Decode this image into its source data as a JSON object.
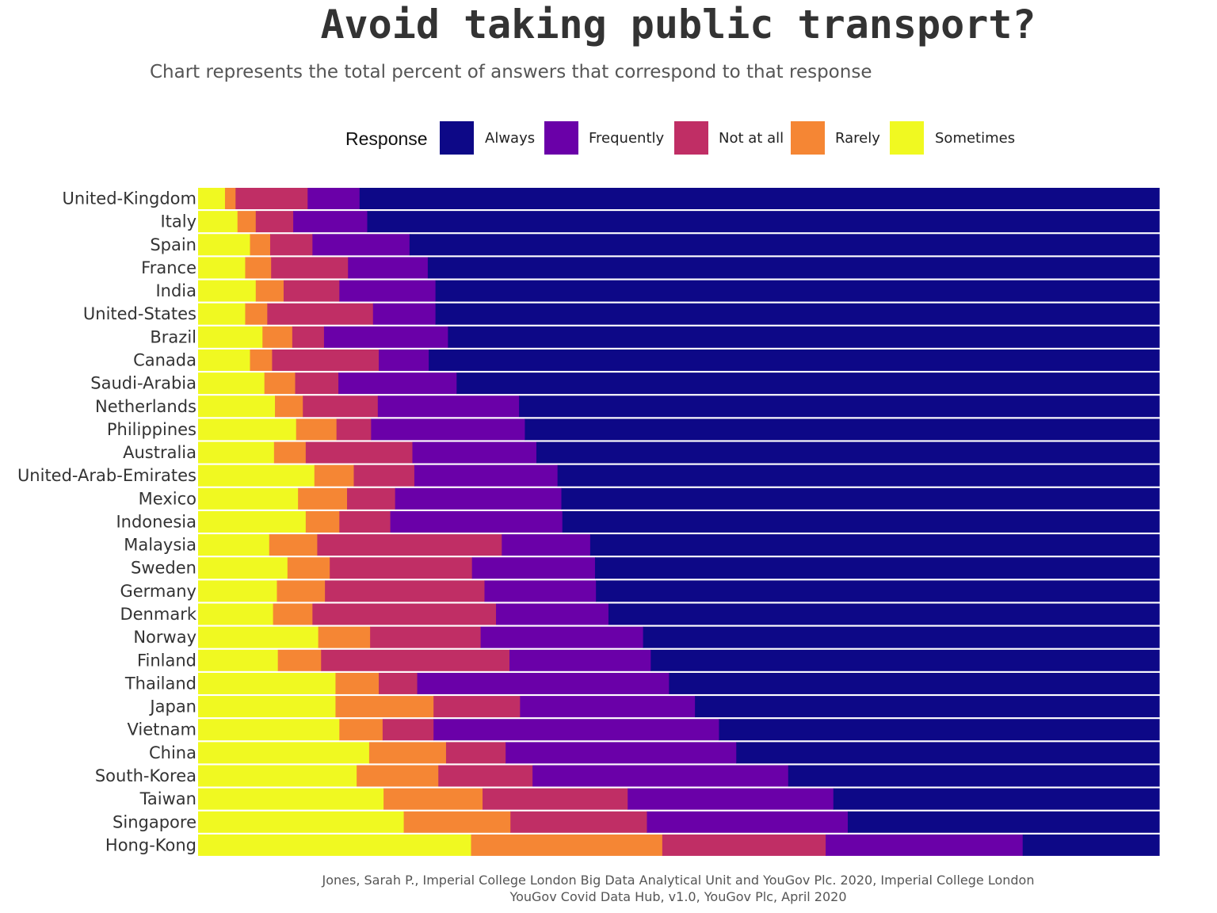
{
  "title": "Avoid taking public transport?",
  "subtitle": "Chart represents the total percent of answers that correspond to that response",
  "legend": {
    "title": "Response",
    "items": [
      {
        "label": "Always",
        "color": "#0d0887"
      },
      {
        "label": "Frequently",
        "color": "#6a00a8"
      },
      {
        "label": "Not at all",
        "color": "#c02e65"
      },
      {
        "label": "Rarely",
        "color": "#f58634"
      },
      {
        "label": "Sometimes",
        "color": "#f0f921"
      }
    ]
  },
  "source_line1": "Jones, Sarah P., Imperial College London Big Data Analytical Unit and YouGov Plc. 2020, Imperial College London",
  "source_line2": "YouGov Covid Data Hub, v1.0, YouGov Plc, April 2020",
  "chart_data": {
    "type": "bar",
    "orientation": "horizontal",
    "stacked": true,
    "xlim": [
      0,
      100
    ],
    "ylabel": "",
    "xlabel": "",
    "grid": false,
    "legend_position": "top",
    "categories": [
      "United-Kingdom",
      "Italy",
      "Spain",
      "France",
      "India",
      "United-States",
      "Brazil",
      "Canada",
      "Saudi-Arabia",
      "Netherlands",
      "Philippines",
      "Australia",
      "United-Arab-Emirates",
      "Mexico",
      "Indonesia",
      "Malaysia",
      "Sweden",
      "Germany",
      "Denmark",
      "Norway",
      "Finland",
      "Thailand",
      "Japan",
      "Vietnam",
      "China",
      "South-Korea",
      "Taiwan",
      "Singapore",
      "Hong-Kong"
    ],
    "series": [
      {
        "name": "Sometimes",
        "color": "#f0f921",
        "values": [
          2.8,
          4.1,
          5.4,
          4.9,
          6.0,
          4.9,
          6.7,
          5.4,
          6.9,
          8.0,
          10.2,
          7.9,
          12.1,
          10.4,
          11.2,
          7.4,
          9.3,
          8.2,
          7.8,
          12.5,
          8.3,
          14.3,
          14.3,
          14.7,
          17.8,
          16.5,
          19.3,
          21.4,
          28.4
        ]
      },
      {
        "name": "Rarely",
        "color": "#f58634",
        "values": [
          1.1,
          1.9,
          2.1,
          2.7,
          2.9,
          2.3,
          3.1,
          2.3,
          3.2,
          2.9,
          4.2,
          3.3,
          4.1,
          5.1,
          3.5,
          5.0,
          4.4,
          5.0,
          4.1,
          5.4,
          4.5,
          4.5,
          10.2,
          4.5,
          8.0,
          8.5,
          10.3,
          11.1,
          19.9
        ]
      },
      {
        "name": "Not at all",
        "color": "#c02e65",
        "values": [
          7.5,
          3.9,
          4.4,
          8.0,
          5.8,
          11.0,
          3.3,
          11.1,
          4.5,
          7.8,
          3.6,
          11.1,
          6.3,
          5.0,
          5.3,
          19.2,
          14.8,
          16.6,
          19.1,
          11.5,
          19.6,
          4.0,
          9.0,
          5.3,
          6.2,
          9.8,
          15.1,
          14.2,
          17.0
        ]
      },
      {
        "name": "Frequently",
        "color": "#6a00a8",
        "values": [
          5.4,
          7.7,
          10.1,
          8.3,
          10.0,
          6.5,
          12.9,
          5.2,
          12.3,
          14.7,
          16.0,
          12.9,
          14.9,
          17.3,
          17.9,
          9.2,
          12.8,
          11.6,
          11.7,
          16.9,
          14.7,
          26.2,
          18.2,
          29.7,
          24.0,
          26.6,
          21.4,
          20.9,
          20.5
        ]
      },
      {
        "name": "Always",
        "color": "#0d0887",
        "values": [
          83.2,
          82.4,
          78.0,
          76.1,
          75.3,
          75.3,
          74.0,
          76.0,
          73.1,
          66.6,
          66.0,
          64.8,
          62.6,
          62.2,
          62.1,
          59.2,
          58.7,
          58.6,
          57.3,
          53.7,
          52.9,
          51.0,
          48.3,
          45.8,
          44.0,
          38.6,
          33.9,
          32.4,
          14.2
        ]
      }
    ]
  }
}
